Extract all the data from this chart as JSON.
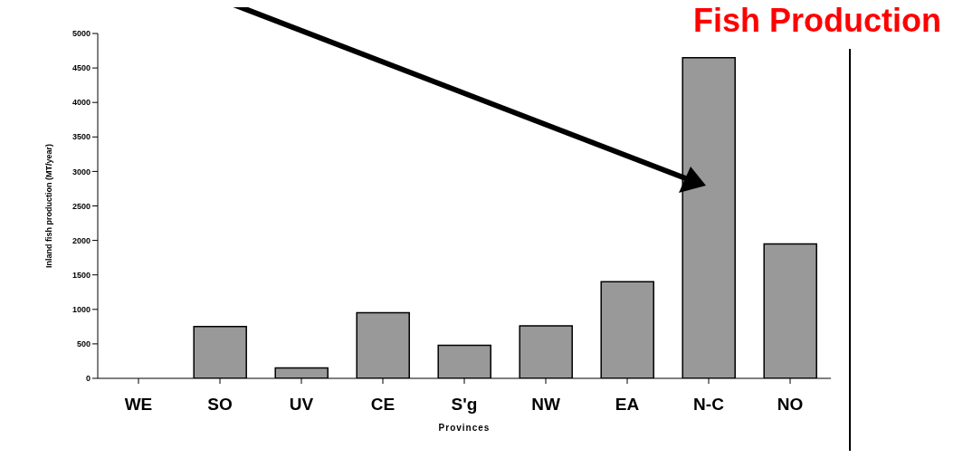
{
  "chart_data": {
    "type": "bar",
    "title": "Fish Production",
    "xlabel": "Provinces",
    "ylabel": "Inland fish production (MT/year)",
    "categories": [
      "WE",
      "SO",
      "UV",
      "CE",
      "S'g",
      "NW",
      "EA",
      "N-C",
      "NO"
    ],
    "values": [
      0,
      750,
      150,
      950,
      480,
      760,
      1400,
      4650,
      1950
    ],
    "color": "#999999",
    "ylim": [
      0,
      5000
    ],
    "yticks": [
      0,
      500,
      1000,
      1500,
      2000,
      2500,
      3000,
      3500,
      4000,
      4500,
      5000
    ]
  }
}
